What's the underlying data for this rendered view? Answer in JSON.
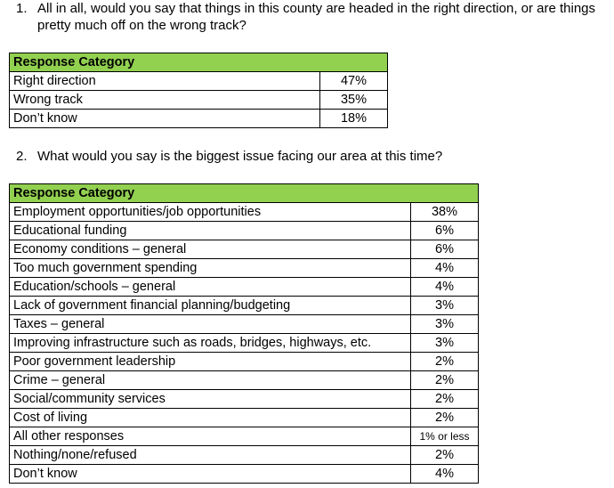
{
  "q1": {
    "number": "1.",
    "text_line1": "All in all, would you say that things in this county are headed in the right direction, or are things",
    "text_line2": "pretty much off on the wrong track?",
    "header": "Response Category",
    "rows": [
      {
        "label": "Right direction",
        "value": "47%"
      },
      {
        "label": "Wrong track",
        "value": "35%"
      },
      {
        "label": "Don’t know",
        "value": "18%"
      }
    ]
  },
  "q2": {
    "number": "2.",
    "text": "What would you say is the biggest issue facing our area at this time?",
    "header": "Response Category",
    "rows": [
      {
        "label": "Employment opportunities/job opportunities",
        "value": "38%"
      },
      {
        "label": "Educational funding",
        "value": "6%"
      },
      {
        "label": "Economy conditions – general",
        "value": "6%"
      },
      {
        "label": "Too much government spending",
        "value": "4%"
      },
      {
        "label": "Education/schools – general",
        "value": "4%"
      },
      {
        "label": "Lack of government financial planning/budgeting",
        "value": "3%"
      },
      {
        "label": "Taxes – general",
        "value": "3%"
      },
      {
        "label": "Improving infrastructure such as roads, bridges, highways, etc.",
        "value": "3%"
      },
      {
        "label": "Poor government leadership",
        "value": "2%"
      },
      {
        "label": "Crime – general",
        "value": "2%"
      },
      {
        "label": "Social/community services",
        "value": "2%"
      },
      {
        "label": "Cost of living",
        "value": "2%"
      },
      {
        "label": "All other responses",
        "value": "1% or less"
      },
      {
        "label": "Nothing/none/refused",
        "value": "2%"
      },
      {
        "label": "Don’t know",
        "value": "4%"
      }
    ]
  },
  "colors": {
    "header_fill": "#92d050"
  }
}
